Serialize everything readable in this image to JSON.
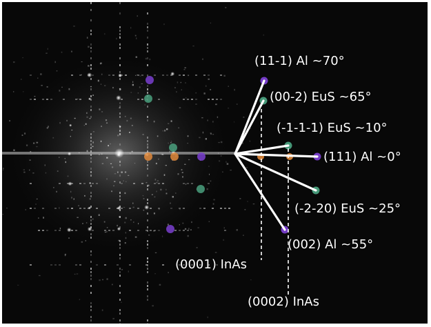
{
  "image": {
    "kind": "FFT diffractogram with indexed reflections",
    "spot_colors": {
      "purple": "#7a3fd0",
      "green": "#4aa07e",
      "orange": "#e08a3c"
    },
    "line_color": "#ffffff"
  },
  "annotations": {
    "al_11m1": "(11-1) Al ~70°",
    "eus_00m2": "(00-2) EuS ~65°",
    "eus_m1m1m1": "(-1-1-1) EuS ~10°",
    "al_111": "(111) Al ~0°",
    "eus_m2m20": "(-2-20) EuS ~25°",
    "al_002": "(002) Al ~55°",
    "inas_0001": "(0001) InAs",
    "inas_0002": "(0002) InAs"
  }
}
